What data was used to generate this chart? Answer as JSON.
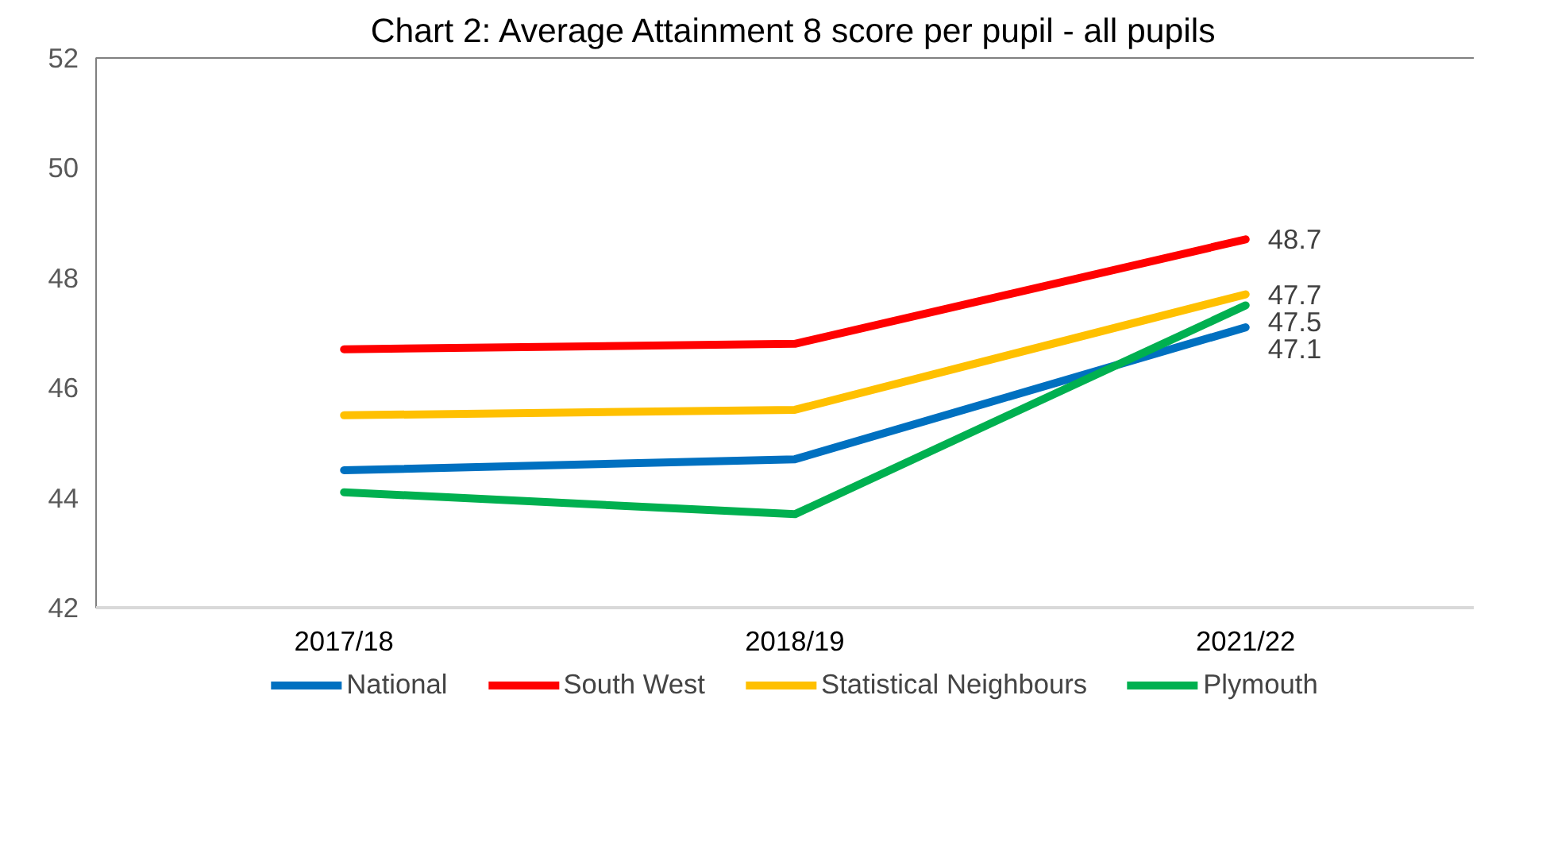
{
  "chart_data": {
    "type": "line",
    "title": "Chart 2: Average Attainment 8 score per pupil - all pupils",
    "categories": [
      "2017/18",
      "2018/19",
      "2021/22"
    ],
    "ylim": [
      42,
      52
    ],
    "yticks": [
      42,
      44,
      46,
      48,
      50,
      52
    ],
    "grid": false,
    "legend": "bottom",
    "marker": "none",
    "line_style": "solid",
    "series": [
      {
        "name": "National",
        "color": "#0070c0",
        "values": [
          44.5,
          44.7,
          47.1
        ],
        "value_labels": [
          null,
          null,
          "47.1"
        ]
      },
      {
        "name": "South West",
        "color": "#ff0000",
        "values": [
          46.7,
          46.8,
          48.7
        ],
        "value_labels": [
          null,
          null,
          "48.7"
        ]
      },
      {
        "name": "Statistical Neighbours",
        "color": "#ffc000",
        "values": [
          45.5,
          45.6,
          47.7
        ],
        "value_labels": [
          null,
          null,
          "47.7"
        ]
      },
      {
        "name": "Plymouth",
        "color": "#00b050",
        "values": [
          44.1,
          43.7,
          47.5
        ],
        "value_labels": [
          null,
          null,
          "47.5"
        ]
      }
    ]
  }
}
